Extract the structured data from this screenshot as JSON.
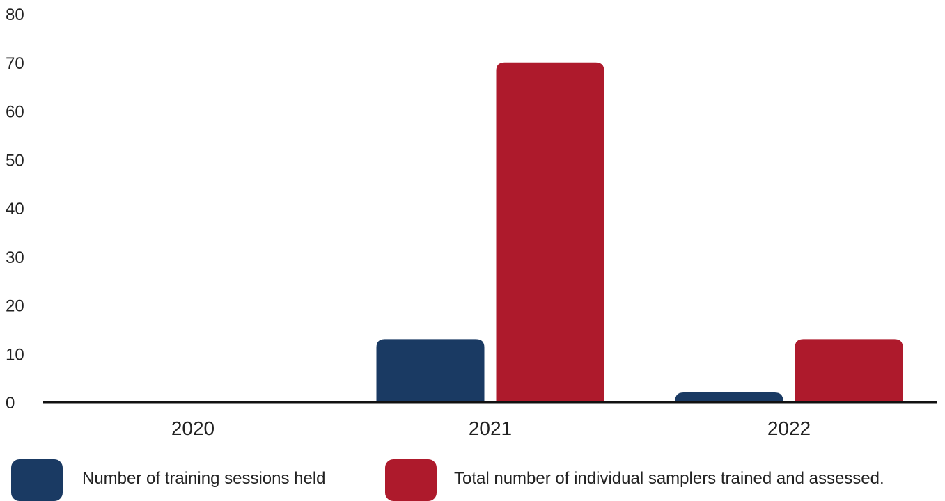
{
  "chart_data": {
    "type": "bar",
    "categories": [
      "2020",
      "2021",
      "2022"
    ],
    "series": [
      {
        "name": "Number of training sessions held",
        "color": "#1a3a63",
        "values": [
          0,
          13,
          2
        ]
      },
      {
        "name": "Total number of individual samplers trained and assessed.",
        "color": "#ae1a2c",
        "values": [
          0,
          70,
          13
        ]
      }
    ],
    "yticks": [
      0,
      10,
      20,
      30,
      40,
      50,
      60,
      70,
      80
    ],
    "ylim": [
      0,
      80
    ],
    "grid": false,
    "legend_position": "bottom"
  }
}
